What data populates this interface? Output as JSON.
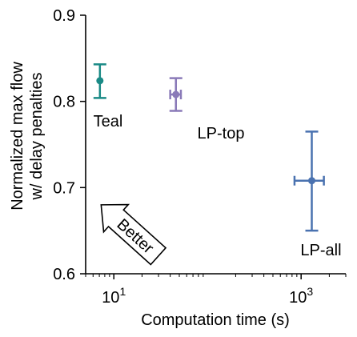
{
  "chart_data": {
    "type": "scatter",
    "title": "",
    "xlabel": "Computation time (s)",
    "ylabel": [
      "Normalized max flow",
      "w/ delay penalties"
    ],
    "xscale": "log",
    "xlim": [
      5,
      3000
    ],
    "ylim": [
      0.6,
      0.9
    ],
    "x_ticks": [
      {
        "base": "10",
        "exp": "1",
        "value": 10
      },
      {
        "base": "10",
        "exp": "3",
        "value": 1000
      }
    ],
    "y_ticks": [
      {
        "value": 0.6,
        "label": "0.6"
      },
      {
        "value": 0.7,
        "label": "0.7"
      },
      {
        "value": 0.8,
        "label": "0.8"
      },
      {
        "value": 0.9,
        "label": "0.9"
      }
    ],
    "grid": false,
    "legend": "none",
    "series": [
      {
        "name": "Teal",
        "color": "#1a8a86",
        "x": 7.1,
        "y": 0.824,
        "y_err": [
          0.804,
          0.843
        ],
        "x_err": null
      },
      {
        "name": "LP-top",
        "color": "#8a7ab8",
        "x": 46,
        "y": 0.808,
        "y_err": [
          0.789,
          0.827
        ],
        "x_err": [
          40,
          52
        ]
      },
      {
        "name": "LP-all",
        "color": "#4a72b0",
        "x": 1300,
        "y": 0.708,
        "y_err": [
          0.65,
          0.765
        ],
        "x_err": [
          850,
          1750
        ]
      }
    ],
    "annotation": {
      "text": "Better",
      "direction": "up-left"
    }
  }
}
